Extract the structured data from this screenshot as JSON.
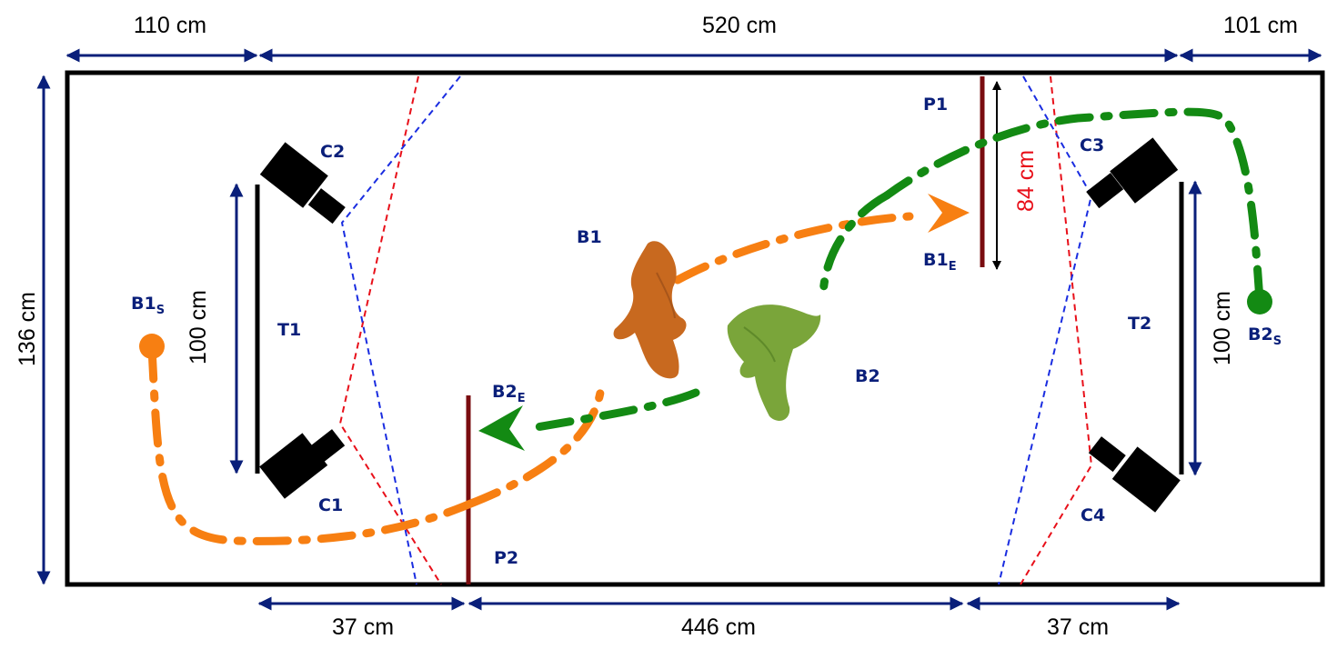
{
  "dimensions": {
    "top_left": "110 cm",
    "top_middle": "520 cm",
    "top_right": "101 cm",
    "left_height": "136 cm",
    "bottom_left": "37 cm",
    "bottom_middle": "446 cm",
    "bottom_right": "37 cm",
    "t1_length": "100 cm",
    "t2_length": "100 cm",
    "p1_length": "84 cm"
  },
  "labels": {
    "c1": "C1",
    "c2": "C2",
    "c3": "C3",
    "c4": "C4",
    "t1": "T1",
    "t2": "T2",
    "p1": "P1",
    "p2": "P2",
    "b1": "B1",
    "b2": "B2",
    "b1_start": {
      "base": "B1",
      "sub": "S"
    },
    "b1_end": {
      "base": "B1",
      "sub": "E"
    },
    "b2_start": {
      "base": "B2",
      "sub": "S"
    },
    "b2_end": {
      "base": "B2",
      "sub": "E"
    }
  },
  "colors": {
    "bird1_path": "#f77f12",
    "bird2_path": "#138a13",
    "bird1_silhouette": "#c8691f",
    "bird2_silhouette": "#7aa53a",
    "dimension_arrow": "#0a1f7a",
    "fov_red": "#e8101a",
    "fov_blue": "#1a2de0",
    "perch": "#7a0c10"
  },
  "icons": {
    "cameras": "camera-icon",
    "birds": "bird-silhouette-icon"
  }
}
